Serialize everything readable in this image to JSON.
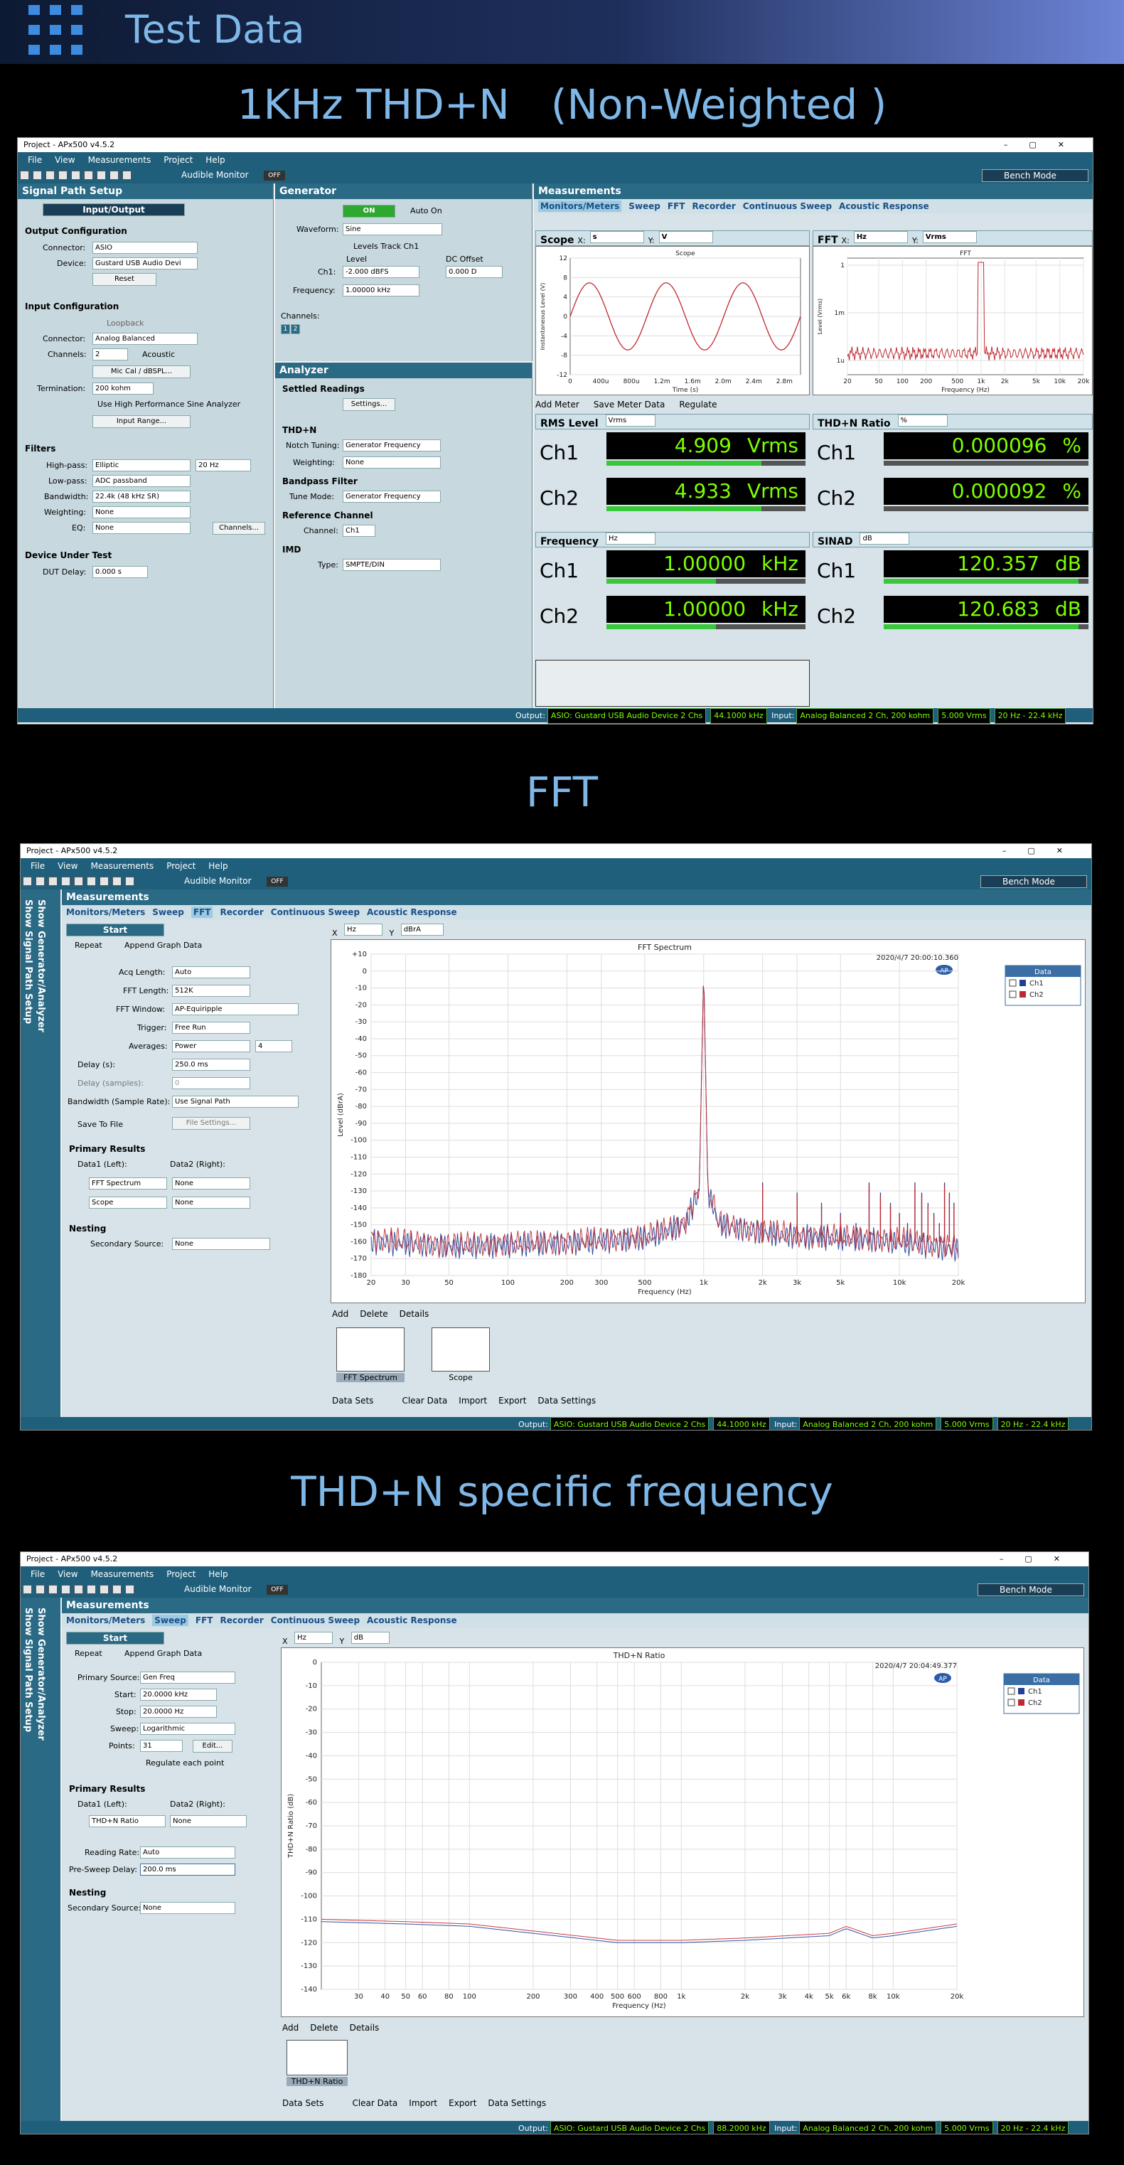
{
  "header": {
    "title": "Test Data"
  },
  "sections": [
    "1KHz THD+N　(Non-Weighted )",
    "FFT",
    "THD+N specific frequency"
  ],
  "app": {
    "title": "Project - APx500 v4.5.2",
    "menu": [
      "File",
      "View",
      "Measurements",
      "Project",
      "Help"
    ],
    "audible_monitor": "Audible Monitor",
    "off": "OFF",
    "bench_mode": "Bench Mode"
  },
  "sp": {
    "title": "Signal Path Setup",
    "io": "Input/Output",
    "out_cfg": "Output Configuration",
    "connector_lbl": "Connector:",
    "connector": "ASIO",
    "device_lbl": "Device:",
    "device": "Gustard USB Audio Devi",
    "reset": "Reset",
    "in_cfg": "Input Configuration",
    "loopback": "Loopback",
    "in_connector": "Analog Balanced",
    "channels_lbl": "Channels:",
    "channels": "2",
    "acoustic": "Acoustic",
    "miccal": "Mic Cal / dBSPL...",
    "termination_lbl": "Termination:",
    "termination": "200 kohm",
    "hp_sine": "Use High Performance Sine Analyzer",
    "input_range": "Input Range...",
    "filters": "Filters",
    "highpass_lbl": "High-pass:",
    "highpass": "Elliptic",
    "highpass_val": "20 Hz",
    "lowpass_lbl": "Low-pass:",
    "lowpass": "ADC passband",
    "bandwidth_lbl": "Bandwidth:",
    "bandwidth": "22.4k (48 kHz SR)",
    "weighting_lbl": "Weighting:",
    "weighting": "None",
    "eq_lbl": "EQ:",
    "eq": "None",
    "channels_btn": "Channels...",
    "dut": "Device Under Test",
    "dut_delay_lbl": "DUT Delay:",
    "dut_delay": "0.000 s"
  },
  "gen": {
    "title": "Generator",
    "on": "ON",
    "auto_on": "Auto On",
    "waveform_lbl": "Waveform:",
    "waveform": "Sine",
    "levels_track": "Levels Track Ch1",
    "level_lbl": "Level",
    "dc_lbl": "DC Offset",
    "ch1_lbl": "Ch1:",
    "level": "-2.000 dBFS",
    "dc": "0.000 D",
    "freq_lbl": "Frequency:",
    "freq": "1.00000 kHz",
    "channels_lbl": "Channels:",
    "ch_badges": [
      "1",
      "2"
    ]
  },
  "an": {
    "title": "Analyzer",
    "settled": "Settled Readings",
    "settings": "Settings...",
    "thdn": "THD+N",
    "notch_lbl": "Notch Tuning:",
    "notch": "Generator Frequency",
    "weighting_lbl": "Weighting:",
    "weighting": "None",
    "bp": "Bandpass Filter",
    "tune_lbl": "Tune Mode:",
    "tune": "Generator Frequency",
    "ref": "Reference Channel",
    "channel_lbl": "Channel:",
    "channel": "Ch1",
    "imd": "IMD",
    "type_lbl": "Type:",
    "type": "SMPTE/DIN"
  },
  "m1": {
    "title": "Measurements",
    "tabs": [
      "Monitors/Meters",
      "Sweep",
      "FFT",
      "Recorder",
      "Continuous Sweep",
      "Acoustic Response"
    ],
    "scope": {
      "label": "Scope",
      "x_lbl": "X:",
      "x": "s",
      "y_lbl": "Y:",
      "y": "V",
      "title": "Scope",
      "ylabel": "Instantaneous Level (V)",
      "xlabel": "Time (s)",
      "yticks": [
        "12",
        "8",
        "4",
        "0",
        "-4",
        "-8",
        "-12"
      ],
      "xticks": [
        "0",
        "400u",
        "800u",
        "1.2m",
        "1.6m",
        "2.0m",
        "2.4m",
        "2.8m"
      ]
    },
    "fft": {
      "label": "FFT",
      "x_lbl": "X:",
      "x": "Hz",
      "y_lbl": "Y:",
      "y": "Vrms",
      "title": "FFT",
      "ylabel": "Level (Vrms)",
      "xlabel": "Frequency (Hz)",
      "yticks": [
        "1",
        "1m",
        "1u"
      ],
      "xticks": [
        "20",
        "50",
        "100",
        "200",
        "500",
        "1k",
        "2k",
        "5k",
        "10k",
        "20k"
      ]
    },
    "add_meter": "Add Meter",
    "save_meter": "Save Meter Data",
    "regulate": "Regulate",
    "meters": [
      {
        "name": "RMS Level",
        "unit_sel": "Vrms",
        "ch": [
          {
            "label": "Ch1",
            "value": "4.909",
            "unit": "Vrms"
          },
          {
            "label": "Ch2",
            "value": "4.933",
            "unit": "Vrms"
          }
        ],
        "fill": [
          0.78,
          0.78
        ]
      },
      {
        "name": "THD+N Ratio",
        "unit_sel": "%",
        "ch": [
          {
            "label": "Ch1",
            "value": "0.000096",
            "unit": "%"
          },
          {
            "label": "Ch2",
            "value": "0.000092",
            "unit": "%"
          }
        ],
        "fill": [
          0,
          0
        ]
      },
      {
        "name": "Frequency",
        "unit_sel": "Hz",
        "ch": [
          {
            "label": "Ch1",
            "value": "1.00000",
            "unit": "kHz"
          },
          {
            "label": "Ch2",
            "value": "1.00000",
            "unit": "kHz"
          }
        ],
        "fill": [
          0.55,
          0.55
        ]
      },
      {
        "name": "SINAD",
        "unit_sel": "dB",
        "ch": [
          {
            "label": "Ch1",
            "value": "120.357",
            "unit": "dB"
          },
          {
            "label": "Ch2",
            "value": "120.683",
            "unit": "dB"
          }
        ],
        "fill": [
          0.95,
          0.95
        ]
      }
    ]
  },
  "status1": {
    "output_lbl": "Output:",
    "out": [
      "ASIO: Gustard USB Audio Device 2 Chs",
      "44.1000 kHz"
    ],
    "input_lbl": "Input:",
    "in": [
      "Analog Balanced 2 Ch, 200 kohm",
      "5.000 Vrms",
      "20 Hz - 22.4 kHz"
    ]
  },
  "w2": {
    "side": [
      "Show Generator/Analyzer",
      "Show Signal Path Setup"
    ],
    "title": "Measurements",
    "tabs": [
      "Monitors/Meters",
      "Sweep",
      "FFT",
      "Recorder",
      "Continuous Sweep",
      "Acoustic Response"
    ],
    "start": "Start",
    "repeat": "Repeat",
    "append": "Append Graph Data",
    "acq_lbl": "Acq Length:",
    "acq": "Auto",
    "fftlen_lbl": "FFT Length:",
    "fftlen": "512K",
    "win_lbl": "FFT Window:",
    "win": "AP-Equiripple",
    "trig_lbl": "Trigger:",
    "trig": "Free Run",
    "avg_lbl": "Averages:",
    "avg": "Power",
    "avg_n": "4",
    "delay_lbl": "Delay (s):",
    "delay": "250.0 ms",
    "delay_samp_lbl": "Delay (samples):",
    "delay_samp": "0",
    "bw_lbl": "Bandwidth (Sample Rate):",
    "bw": "Use Signal Path",
    "save_file": "Save To File",
    "file_settings": "File Settings...",
    "primary": "Primary Results",
    "d1": "Data1 (Left):",
    "d2": "Data2 (Right):",
    "r1": "FFT Spectrum",
    "r1b": "None",
    "r2": "Scope",
    "r2b": "None",
    "nesting": "Nesting",
    "sec_lbl": "Secondary Source:",
    "sec": "None",
    "x_lbl": "X",
    "x": "Hz",
    "y_lbl": "Y",
    "y": "dBrA",
    "plot_title": "FFT Spectrum",
    "timestamp": "2020/4/7 20:00:10.360",
    "ap": "AP",
    "legend_title": "Data",
    "legend": [
      "Ch1",
      "Ch2"
    ],
    "ylabel": "Level (dBrA)",
    "xlabel": "Frequency (Hz)",
    "yticks": [
      "+10",
      "0",
      "-10",
      "-20",
      "-30",
      "-40",
      "-50",
      "-60",
      "-70",
      "-80",
      "-90",
      "-100",
      "-110",
      "-120",
      "-130",
      "-140",
      "-150",
      "-160",
      "-170",
      "-180"
    ],
    "xticks": [
      "20",
      "30",
      "50",
      "100",
      "200",
      "300",
      "500",
      "1k",
      "2k",
      "3k",
      "5k",
      "10k",
      "20k"
    ],
    "add": "Add",
    "delete": "Delete",
    "details": "Details",
    "thumbs": [
      "FFT Spectrum",
      "Scope"
    ],
    "datasets": "Data Sets",
    "clear": "Clear Data",
    "import": "Import",
    "export": "Export",
    "dsettings": "Data Settings"
  },
  "status2": {
    "output_lbl": "Output:",
    "out": [
      "ASIO: Gustard USB Audio Device 2 Chs",
      "44.1000 kHz"
    ],
    "input_lbl": "Input:",
    "in": [
      "Analog Balanced 2 Ch, 200 kohm",
      "5.000 Vrms",
      "20 Hz - 22.4 kHz"
    ]
  },
  "w3": {
    "side": [
      "Show Generator/Analyzer",
      "Show Signal Path Setup"
    ],
    "title": "Measurements",
    "tabs": [
      "Monitors/Meters",
      "Sweep",
      "FFT",
      "Recorder",
      "Continuous Sweep",
      "Acoustic Response"
    ],
    "start": "Start",
    "repeat": "Repeat",
    "append": "Append Graph Data",
    "ps_lbl": "Primary Source:",
    "ps": "Gen Freq",
    "start_lbl": "Start:",
    "startv": "20.0000 kHz",
    "stop_lbl": "Stop:",
    "stopv": "20.0000 Hz",
    "sweep_lbl": "Sweep:",
    "sweep": "Logarithmic",
    "points_lbl": "Points:",
    "points": "31",
    "edit": "Edit...",
    "reg_each": "Regulate each point",
    "primary": "Primary Results",
    "d1": "Data1 (Left):",
    "d2": "Data2 (Right):",
    "r1": "THD+N Ratio",
    "r1b": "None",
    "rr_lbl": "Reading Rate:",
    "rr": "Auto",
    "psd_lbl": "Pre-Sweep Delay:",
    "psd": "200.0 ms",
    "nesting": "Nesting",
    "sec_lbl": "Secondary Source:",
    "sec": "None",
    "x_lbl": "X",
    "x": "Hz",
    "y_lbl": "Y",
    "y": "dB",
    "plot_title": "THD+N Ratio",
    "timestamp": "2020/4/7 20:04:49.377",
    "ap": "AP",
    "legend_title": "Data",
    "legend": [
      "Ch1",
      "Ch2"
    ],
    "ylabel": "THD+N Ratio (dB)",
    "xlabel": "Frequency (Hz)",
    "yticks": [
      "0",
      "-10",
      "-20",
      "-30",
      "-40",
      "-50",
      "-60",
      "-70",
      "-80",
      "-90",
      "-100",
      "-110",
      "-120",
      "-130",
      "-140"
    ],
    "xticks": [
      "30",
      "40",
      "50",
      "60",
      "80",
      "100",
      "200",
      "300",
      "400",
      "500",
      "600",
      "800",
      "1k",
      "2k",
      "3k",
      "4k",
      "5k",
      "6k",
      "8k",
      "10k",
      "20k"
    ],
    "add": "Add",
    "delete": "Delete",
    "details": "Details",
    "thumbs": [
      "THD+N Ratio"
    ],
    "datasets": "Data Sets",
    "clear": "Clear Data",
    "import": "Import",
    "export": "Export",
    "dsettings": "Data Settings"
  },
  "status3": {
    "output_lbl": "Output:",
    "out": [
      "ASIO: Gustard USB Audio Device 2 Chs",
      "88.2000 kHz"
    ],
    "input_lbl": "Input:",
    "in": [
      "Analog Balanced 2 Ch, 200 kohm",
      "5.000 Vrms",
      "20 Hz - 22.4 kHz"
    ]
  },
  "colors": {
    "ch1": "#1f3f9a",
    "ch2": "#c0282f",
    "accent": "#2a6a85",
    "meter": "#7dff00"
  },
  "chart_data": [
    {
      "type": "line",
      "title": "Scope",
      "xlabel": "Time (s)",
      "ylabel": "Instantaneous Level (V)",
      "xlim": [
        0,
        0.003
      ],
      "ylim": [
        -12,
        12
      ],
      "series": [
        {
          "name": "Ch1",
          "x": [
            0,
            0.00025,
            0.0005,
            0.00075,
            0.001,
            0.00125,
            0.0015,
            0.00175,
            0.002,
            0.00225,
            0.0025,
            0.00275,
            0.003
          ],
          "y": [
            0,
            6.9,
            0,
            -6.9,
            0,
            6.9,
            0,
            -6.9,
            0,
            6.9,
            0,
            -6.9,
            0
          ]
        }
      ]
    },
    {
      "type": "line",
      "title": "FFT",
      "xlabel": "Frequency (Hz)",
      "ylabel": "Level (Vrms)",
      "scale": "log",
      "series": [
        {
          "name": "Ch1",
          "x": [
            20,
            100,
            500,
            1000,
            2000,
            5000,
            20000
          ],
          "y": [
            1e-06,
            1e-06,
            2e-06,
            4.9,
            1e-06,
            1e-06,
            1e-06
          ]
        }
      ]
    },
    {
      "type": "line",
      "title": "FFT Spectrum",
      "xlabel": "Frequency (Hz)",
      "ylabel": "Level (dBrA)",
      "xscale": "log",
      "xlim": [
        20,
        20000
      ],
      "ylim": [
        -180,
        10
      ],
      "series": [
        {
          "name": "Ch1",
          "x": [
            20,
            50,
            100,
            200,
            500,
            800,
            950,
            1000,
            1050,
            1200,
            2000,
            3000,
            5000,
            10000,
            20000
          ],
          "y": [
            -160,
            -163,
            -162,
            -161,
            -158,
            -150,
            -130,
            2,
            -130,
            -150,
            -155,
            -157,
            -158,
            -160,
            -165
          ]
        },
        {
          "name": "Ch2",
          "x": [
            20,
            50,
            100,
            200,
            500,
            800,
            950,
            1000,
            1050,
            1200,
            2000,
            3000,
            5000,
            10000,
            20000
          ],
          "y": [
            -158,
            -162,
            -161,
            -160,
            -157,
            -149,
            -128,
            2,
            -128,
            -149,
            -154,
            -156,
            -157,
            -159,
            -163
          ]
        }
      ]
    },
    {
      "type": "line",
      "title": "THD+N Ratio",
      "xlabel": "Frequency (Hz)",
      "ylabel": "THD+N Ratio (dB)",
      "xscale": "log",
      "xlim": [
        20,
        20000
      ],
      "ylim": [
        -140,
        0
      ],
      "series": [
        {
          "name": "Ch1",
          "x": [
            20,
            50,
            100,
            200,
            500,
            1000,
            2000,
            5000,
            6000,
            8000,
            10000,
            20000
          ],
          "y": [
            -111,
            -112,
            -113,
            -116,
            -120,
            -120,
            -119,
            -117,
            -114,
            -118,
            -117,
            -113
          ]
        },
        {
          "name": "Ch2",
          "x": [
            20,
            50,
            100,
            200,
            500,
            1000,
            2000,
            5000,
            6000,
            8000,
            10000,
            20000
          ],
          "y": [
            -110,
            -111,
            -112,
            -115,
            -119,
            -119,
            -118,
            -116,
            -113,
            -117,
            -116,
            -112
          ]
        }
      ]
    }
  ]
}
